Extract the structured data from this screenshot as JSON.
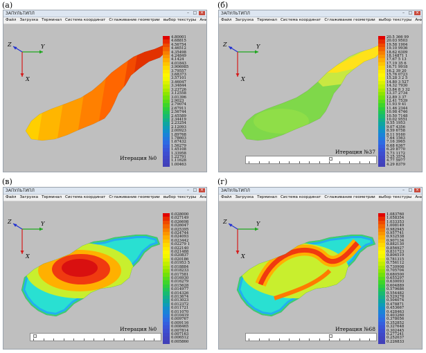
{
  "panels": [
    {
      "label": "(а)",
      "window_title": "ЗАПУЛЬТИПЛ",
      "menu": [
        "Файл",
        "Загрузка",
        "Терминал",
        "Система координат",
        "Сглаживание геометрии",
        "выбор текстуры",
        "Анимация"
      ],
      "axes": {
        "z": "Z",
        "y": "Y",
        "x": "X"
      },
      "iteration": "Итерация №0",
      "has_slider": false,
      "colorbar": [
        "4.80001",
        "4.68815",
        "4.56754",
        "4.46512",
        "4.35498",
        "4.24849",
        "4.1424",
        "4.01843",
        "3.906985",
        "3.79557",
        "3.68373",
        "3.57101",
        "3.46047",
        "3.34844",
        "3.23726",
        "3.12558",
        "3.01396",
        "2.9023",
        "2.79074",
        "2.67911",
        "2.56744",
        "2.45589",
        "2.34419",
        "2.23254",
        "2.12093",
        "2.00923",
        "1.89768",
        "1.78603",
        "1.67432",
        "1.56279",
        "1.45108",
        "1.33958",
        "1.22791",
        "1.11628",
        "1.00463"
      ],
      "palette": "warm"
    },
    {
      "label": "(б)",
      "window_title": "ЗАПУЛЬТИПЛ",
      "menu": [
        "Файл",
        "Загрузка",
        "Терминал",
        "Система координат",
        "Сглаживание геометрии",
        "выбор текстуры",
        "Анимация"
      ],
      "axes": {
        "z": "Z",
        "y": "Y",
        "x": "X"
      },
      "iteration": "Итерация №37",
      "has_slider": true,
      "colorbar": [
        "20.5 366 99",
        "20.03 9503",
        "19.58 1904",
        "19.10 9936",
        "18.62 6309",
        "18.14871 1",
        "17.67 5 13",
        "17.19 35 6",
        "16.71 9918",
        "16.2 39 20",
        "15.76 0723",
        "15.28 3 2 5",
        "14.80 3 527",
        "14.32 7930",
        "13.84 8 3 32",
        "13.37 2734",
        "12.89 3 37",
        "12.41 7539",
        "11.93 9 41",
        "11.46 2344",
        "10.98 4746",
        "10.50 7148",
        "10.02 9551",
        "9.55 1953",
        "9.07 4356",
        "8.59 6758",
        "8.11 9160",
        "7.64 1563",
        "7.16 3965",
        "6.68 6367",
        "6.20 8770",
        "5.73 1172",
        "5.25 3574",
        "4.77 5977",
        "4.29 8379"
      ],
      "palette": "green"
    },
    {
      "label": "(в)",
      "window_title": "ЗАПУЛЬТИПЛ",
      "menu": [
        "Файл",
        "Загрузка",
        "Терминал",
        "Система координат",
        "Сглаживание геометрии",
        "выбор текстуры",
        "Анимация"
      ],
      "axes": {
        "z": "Z",
        "y": "Y",
        "x": "X"
      },
      "iteration": "Итерация №0",
      "has_slider": true,
      "colorbar": [
        "0.028000",
        "0.027149",
        "0.026698",
        "0.026047",
        "0.025395",
        "0.024744",
        "0.024093",
        "0.023442",
        "0.02279 1",
        "0.022140",
        "0.021488",
        "0.020837",
        "0.020186",
        "0.01953 5",
        "0.018884",
        "0.018233",
        "0.017581",
        "0.016930",
        "0.016279",
        "0.015628",
        "0.014977",
        "0.014326",
        "0.013674",
        "0.013023",
        "0.012372",
        "0.011721",
        "0.011070",
        "0.010419",
        "0.009767",
        "0.009116",
        "0.008465",
        "0.007814",
        "0.007163",
        "0.006512",
        "0.005860"
      ],
      "palette": "full"
    },
    {
      "label": "(г)",
      "window_title": "ЗАПУЛЬТИПЛ",
      "menu": [
        "Файл",
        "Загрузка",
        "Терминал",
        "Система координат",
        "Сглаживание геометрии",
        "выбор текстуры",
        "Анимация"
      ],
      "axes": {
        "z": "Z",
        "y": "Y",
        "x": "X"
      },
      "iteration": "Итерация №68",
      "has_slider": true,
      "colorbar": [
        "1.083760",
        "1.058354",
        "1.033353",
        "1.008149",
        "0.982945",
        "0.957741",
        "0.932538",
        "0.907134",
        "0.882130",
        "0.856927",
        "0.831723",
        "0.806519",
        "0.781315",
        "0.756112",
        "0.730908",
        "0.705704",
        "0.680500",
        "0.655297",
        "0.630093",
        "0.604889",
        "0.579686",
        "0.554482",
        "0.529278",
        "0.504074",
        "0.478871",
        "0.453667",
        "0.428463",
        "0.403260",
        "0.378056",
        "0.352852",
        "0.327648",
        "0.302445",
        "0.277241",
        "0.252037",
        "0.226833"
      ],
      "palette": "full"
    }
  ]
}
